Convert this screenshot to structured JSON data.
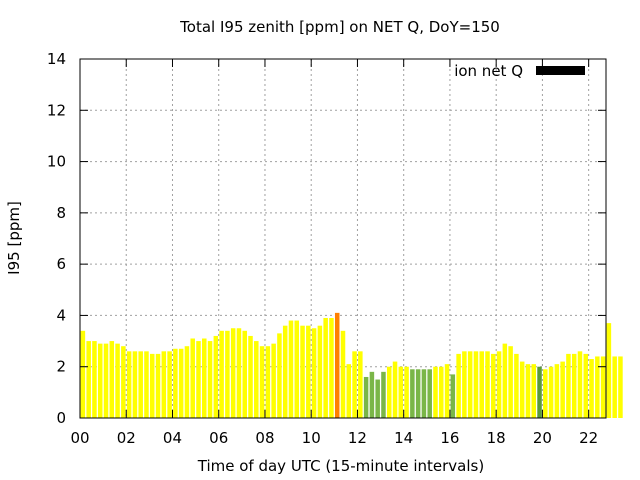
{
  "chart_data": {
    "type": "bar",
    "title": "Total I95 zenith [ppm] on NET Q, DoY=150",
    "xlabel": "Time of day UTC (15-minute intervals)",
    "ylabel": "I95 [ppm]",
    "ylim": [
      0,
      14
    ],
    "xlim": [
      0,
      22.75
    ],
    "yticks": [
      "0",
      "2",
      "4",
      "6",
      "8",
      "10",
      "12",
      "14"
    ],
    "xticks": [
      "00",
      "02",
      "04",
      "06",
      "08",
      "10",
      "12",
      "14",
      "16",
      "18",
      "20",
      "22"
    ],
    "grid": true,
    "legend": {
      "label": "ion net Q",
      "position": "top-right",
      "color": "#000000"
    },
    "colors": {
      "yellow": "#ffff00",
      "orange": "#ff8000",
      "green": "#7ab648",
      "darkgreen": "#5a9a3a"
    },
    "interval_hours": 0.25,
    "values": [
      3.4,
      3.0,
      3.0,
      2.9,
      2.9,
      3.0,
      2.9,
      2.8,
      2.6,
      2.6,
      2.6,
      2.6,
      2.5,
      2.5,
      2.6,
      2.6,
      2.7,
      2.7,
      2.8,
      3.1,
      3.0,
      3.1,
      3.0,
      3.2,
      3.4,
      3.4,
      3.5,
      3.5,
      3.4,
      3.2,
      3.0,
      2.8,
      2.8,
      2.9,
      3.3,
      3.6,
      3.8,
      3.8,
      3.6,
      3.6,
      3.5,
      3.6,
      3.9,
      3.9,
      4.1,
      3.4,
      2.1,
      2.6,
      2.6,
      1.6,
      1.8,
      1.5,
      1.8,
      2.0,
      2.2,
      2.0,
      2.0,
      1.9,
      1.9,
      1.9,
      1.9,
      2.0,
      2.0,
      2.1,
      1.7,
      2.5,
      2.6,
      2.6,
      2.6,
      2.6,
      2.6,
      2.5,
      2.6,
      2.9,
      2.8,
      2.5,
      2.2,
      2.1,
      2.1,
      2.0,
      1.9,
      2.0,
      2.1,
      2.2,
      2.5,
      2.5,
      2.6,
      2.5,
      2.3,
      2.4,
      2.4,
      3.7,
      2.4,
      2.4
    ],
    "bar_colors": [
      "yellow",
      "yellow",
      "yellow",
      "yellow",
      "yellow",
      "yellow",
      "yellow",
      "yellow",
      "yellow",
      "yellow",
      "yellow",
      "yellow",
      "yellow",
      "yellow",
      "yellow",
      "yellow",
      "yellow",
      "yellow",
      "yellow",
      "yellow",
      "yellow",
      "yellow",
      "yellow",
      "yellow",
      "yellow",
      "yellow",
      "yellow",
      "yellow",
      "yellow",
      "yellow",
      "yellow",
      "yellow",
      "yellow",
      "yellow",
      "yellow",
      "yellow",
      "yellow",
      "yellow",
      "yellow",
      "yellow",
      "yellow",
      "yellow",
      "yellow",
      "yellow",
      "orange",
      "yellow",
      "yellow",
      "yellow",
      "yellow",
      "green",
      "green",
      "green",
      "green",
      "yellow",
      "yellow",
      "yellow",
      "yellow",
      "green",
      "green",
      "green",
      "green",
      "yellow",
      "yellow",
      "yellow",
      "green",
      "yellow",
      "yellow",
      "yellow",
      "yellow",
      "yellow",
      "yellow",
      "yellow",
      "yellow",
      "yellow",
      "yellow",
      "yellow",
      "yellow",
      "yellow",
      "yellow",
      "darkgreen",
      "yellow",
      "yellow",
      "yellow",
      "yellow",
      "yellow",
      "yellow",
      "yellow",
      "yellow",
      "yellow",
      "yellow",
      "yellow",
      "yellow",
      "yellow",
      "yellow"
    ]
  }
}
